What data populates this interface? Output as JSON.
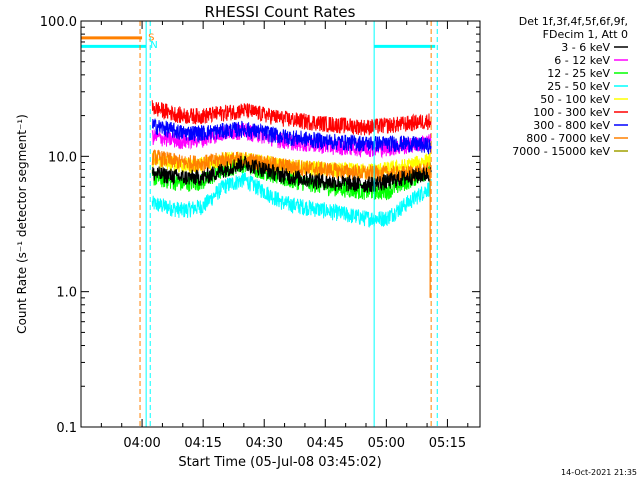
{
  "chart_data": {
    "type": "line",
    "title": "RHESSI Count Rates",
    "xlabel": "Start Time (05-Jul-08 03:45:02)",
    "ylabel": "Count Rate (s⁻¹ detector segment⁻¹)",
    "yscale": "log",
    "ylim": [
      0.1,
      100.0
    ],
    "xlim_minutes": [
      0,
      98
    ],
    "x_tick_minutes": [
      15,
      30,
      45,
      60,
      75,
      90
    ],
    "x_tick_labels": [
      "04:00",
      "04:15",
      "04:30",
      "04:45",
      "05:00",
      "05:15"
    ],
    "y_tick_values": [
      0.1,
      1.0,
      10.0,
      100.0
    ],
    "y_tick_labels": [
      "0.1",
      "1.0",
      "10.0",
      "100.0"
    ],
    "legend_header": [
      "Det 1f,3f,4f,5f,6f,9f,",
      "FDecim 1, Att 0"
    ],
    "series": [
      {
        "name": "3 - 6 keV",
        "color": "#000000",
        "t": [
          17.5,
          25,
          30,
          35,
          40,
          50,
          60,
          70,
          75,
          80,
          86
        ],
        "values": [
          7.5,
          7.0,
          7.0,
          8.0,
          9.0,
          7.2,
          6.5,
          6.2,
          6.5,
          7.0,
          7.5
        ]
      },
      {
        "name": "6 - 12 keV",
        "color": "#ff00ff",
        "t": [
          17.5,
          25,
          30,
          35,
          40,
          50,
          60,
          70,
          75,
          80,
          86
        ],
        "values": [
          14.0,
          13.0,
          13.5,
          15.0,
          15.5,
          13.0,
          12.0,
          11.5,
          11.5,
          12.0,
          13.0
        ]
      },
      {
        "name": "12 - 25 keV",
        "color": "#00ff00",
        "t": [
          17.5,
          25,
          30,
          35,
          40,
          50,
          60,
          70,
          75,
          80,
          86
        ],
        "values": [
          7.0,
          6.3,
          6.5,
          8.0,
          8.8,
          6.8,
          6.0,
          5.5,
          5.5,
          6.5,
          8.0
        ]
      },
      {
        "name": "25 - 50 keV",
        "color": "#00ffff",
        "t": [
          17.5,
          25,
          30,
          35,
          40,
          50,
          60,
          70,
          75,
          80,
          86
        ],
        "values": [
          4.5,
          4.0,
          4.3,
          6.0,
          6.8,
          4.5,
          4.0,
          3.5,
          3.5,
          4.5,
          6.0
        ]
      },
      {
        "name": "50 - 100 keV",
        "color": "#ffff00",
        "t": [
          17.5,
          25,
          30,
          35,
          40,
          50,
          60,
          70,
          75,
          80,
          86
        ],
        "values": [
          9.5,
          8.5,
          8.8,
          9.5,
          9.5,
          8.5,
          8.0,
          7.8,
          8.0,
          8.5,
          9.5
        ]
      },
      {
        "name": "100 - 300 keV",
        "color": "#ff0000",
        "t": [
          17.5,
          25,
          30,
          35,
          40,
          50,
          60,
          70,
          75,
          80,
          86
        ],
        "values": [
          23.0,
          20.0,
          20.0,
          21.0,
          22.0,
          19.0,
          17.5,
          16.5,
          17.0,
          17.5,
          18.5
        ]
      },
      {
        "name": "300 - 800 keV",
        "color": "#0000ff",
        "t": [
          17.5,
          25,
          30,
          35,
          40,
          50,
          60,
          70,
          75,
          80,
          86
        ],
        "values": [
          17.0,
          15.0,
          15.0,
          15.5,
          16.0,
          14.0,
          13.0,
          12.5,
          12.5,
          12.5,
          12.0
        ]
      },
      {
        "name": "800 - 7000 keV",
        "color": "#ff8000",
        "t": [
          17.5,
          25,
          30,
          35,
          40,
          50,
          60,
          70,
          75,
          80,
          86
        ],
        "values": [
          10.0,
          9.0,
          9.0,
          9.5,
          9.5,
          8.5,
          8.0,
          7.5,
          7.5,
          7.5,
          8.0
        ]
      },
      {
        "name": "7000 - 15000 keV",
        "color": "#a0a000",
        "t": [],
        "values": []
      }
    ],
    "annotations": [
      {
        "text": "S",
        "color": "#ff8000",
        "t": 16.5,
        "y": 72
      },
      {
        "text": "N",
        "color": "#00ffff",
        "t": 17.0,
        "y": 63
      },
      {
        "type": "level",
        "color": "#ff8000",
        "t": [
          0,
          15
        ],
        "y": 75
      },
      {
        "type": "level",
        "color": "#00ffff",
        "t": [
          0,
          16
        ],
        "y": 65
      },
      {
        "type": "level",
        "color": "#00ffff",
        "t": [
          72,
          87
        ],
        "y": 65
      },
      {
        "type": "vline-solid",
        "color": "#00ffff",
        "t": [
          0,
          16,
          72
        ]
      },
      {
        "type": "vline-dashed",
        "color": "#00ffff",
        "t": [
          17,
          87.5
        ]
      },
      {
        "type": "vline-dashed",
        "color": "#ff8000",
        "t": [
          14.5,
          86
        ]
      },
      {
        "type": "dip",
        "color": "#ff8000",
        "t": 86,
        "y": 0.9
      }
    ],
    "timestamp": "14-Oct-2021 21:35"
  }
}
